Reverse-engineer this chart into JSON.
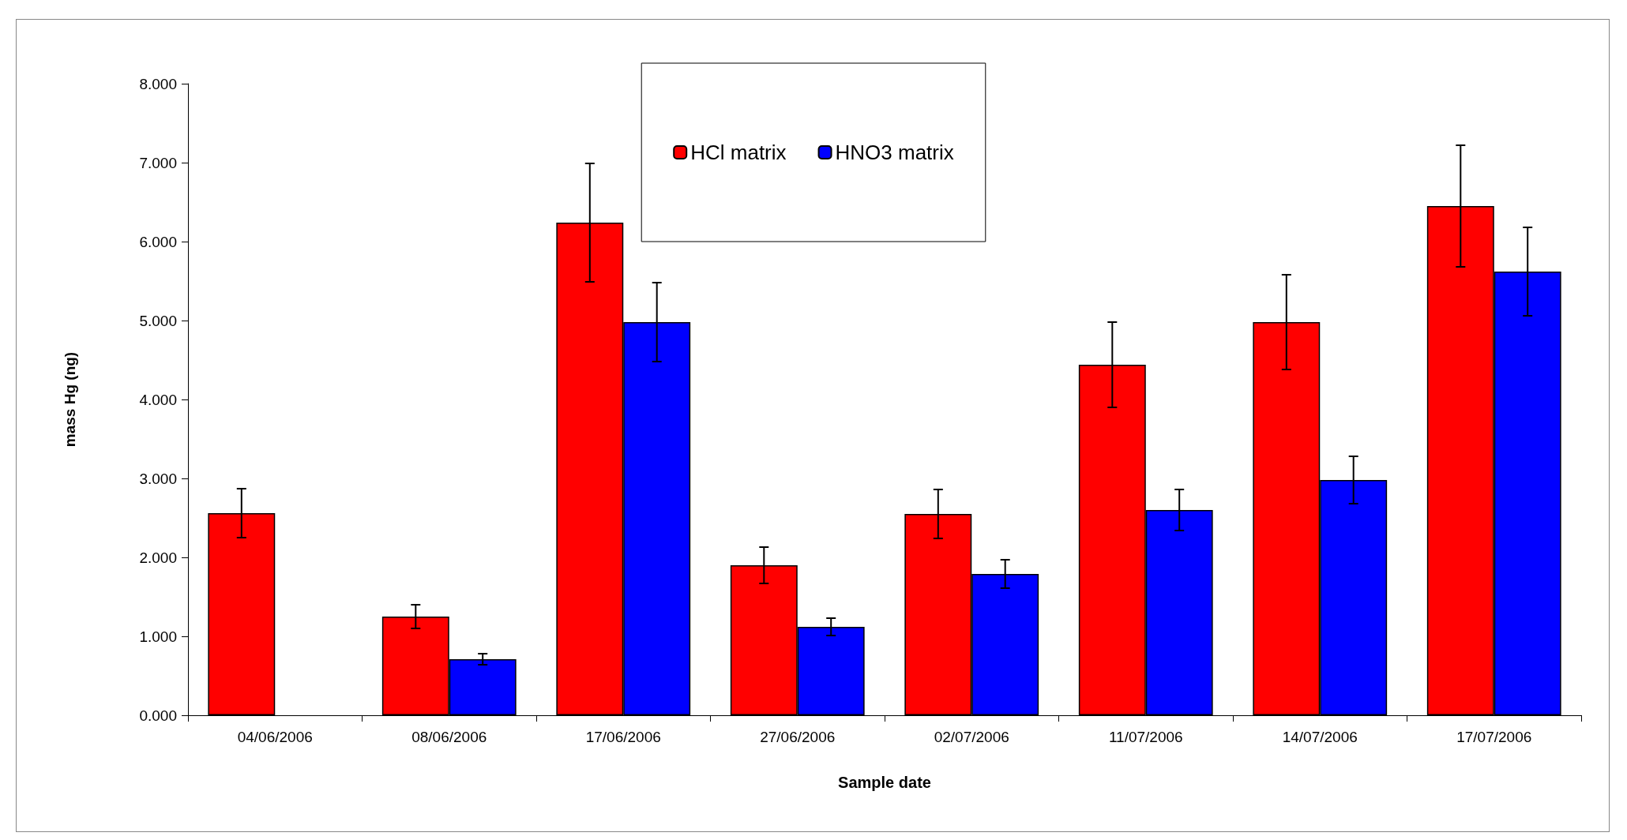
{
  "chart_data": {
    "type": "bar",
    "xlabel": "Sample date",
    "ylabel": "mass Hg (ng)",
    "categories": [
      "04/06/2006",
      "08/06/2006",
      "17/06/2006",
      "27/06/2006",
      "02/07/2006",
      "11/07/2006",
      "14/07/2006",
      "17/07/2006"
    ],
    "series": [
      {
        "name": "HCl matrix",
        "color": "#ff0000",
        "values": [
          2.56,
          1.25,
          6.24,
          1.9,
          2.55,
          4.44,
          4.98,
          6.45
        ],
        "errors": [
          0.31,
          0.15,
          0.75,
          0.23,
          0.31,
          0.54,
          0.6,
          0.77
        ]
      },
      {
        "name": "HNO3 matrix",
        "color": "#0000ff",
        "values": [
          null,
          0.71,
          4.98,
          1.12,
          1.79,
          2.6,
          2.98,
          5.62
        ],
        "errors": [
          null,
          0.07,
          0.5,
          0.11,
          0.18,
          0.26,
          0.3,
          0.56
        ]
      }
    ],
    "ylim": [
      0,
      8
    ],
    "yticks": [
      {
        "value": 0,
        "label": "0.000"
      },
      {
        "value": 1,
        "label": "1.000"
      },
      {
        "value": 2,
        "label": "2.000"
      },
      {
        "value": 3,
        "label": "3.000"
      },
      {
        "value": 4,
        "label": "4.000"
      },
      {
        "value": 5,
        "label": "5.000"
      },
      {
        "value": 6,
        "label": "6.000"
      },
      {
        "value": 7,
        "label": "7.000"
      },
      {
        "value": 8,
        "label": "8.000"
      }
    ],
    "grid": false,
    "legend": "top"
  }
}
